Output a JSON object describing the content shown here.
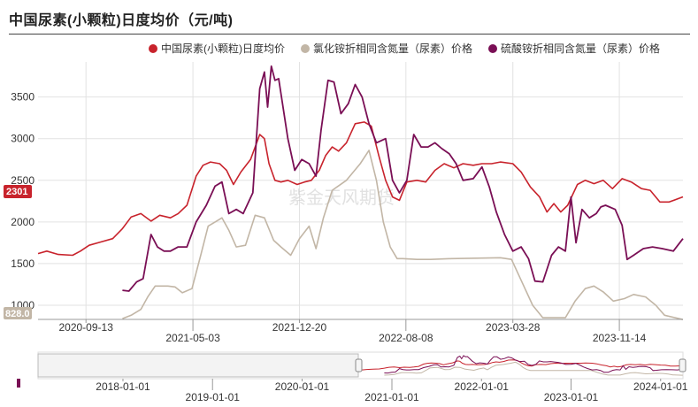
{
  "header": {
    "title": "中国尿素(小颗粒)日度均价（元/吨)"
  },
  "watermark": "紫金天风期货",
  "badges": {
    "current_main": "2301",
    "current_ammonium_chloride": "828.0"
  },
  "navigator": {
    "labels": [
      "2018-01-01",
      "2019-01-01",
      "2020-01-01",
      "2021-01-01",
      "2022-01-01",
      "2023-01-01",
      "2024-01-01"
    ],
    "selected_range": [
      "2020-06-01",
      "2024-03-31"
    ]
  },
  "chart_data": {
    "type": "line",
    "title": "中国尿素(小颗粒)日度均价（元/吨)",
    "xlabel": "",
    "ylabel": "",
    "x_ticks": [
      "2020-09-13",
      "2021-05-03",
      "2021-12-20",
      "2022-08-08",
      "2023-03-28",
      "2023-11-14"
    ],
    "y_ticks": [
      1000,
      1500,
      2000,
      2500,
      3000,
      3500
    ],
    "ylim": [
      830,
      3900
    ],
    "xlim": [
      "2020-06-01",
      "2024-03-31"
    ],
    "grid": true,
    "legend_position": "top-right",
    "colors": {
      "urea": "#c8232c",
      "ammonium_chloride": "#c2b6a6",
      "ammonium_sulfate": "#7a0f55"
    },
    "series": [
      {
        "name": "中国尿素(小颗粒)日度均价",
        "key": "urea",
        "points": [
          [
            "2020-06-01",
            1620
          ],
          [
            "2020-06-20",
            1650
          ],
          [
            "2020-07-15",
            1610
          ],
          [
            "2020-08-15",
            1600
          ],
          [
            "2020-09-01",
            1650
          ],
          [
            "2020-09-20",
            1720
          ],
          [
            "2020-10-15",
            1760
          ],
          [
            "2020-11-10",
            1800
          ],
          [
            "2020-12-01",
            1920
          ],
          [
            "2020-12-20",
            2060
          ],
          [
            "2021-01-10",
            2100
          ],
          [
            "2021-02-01",
            2010
          ],
          [
            "2021-02-20",
            2080
          ],
          [
            "2021-03-15",
            2050
          ],
          [
            "2021-04-01",
            2100
          ],
          [
            "2021-04-20",
            2200
          ],
          [
            "2021-05-10",
            2550
          ],
          [
            "2021-05-25",
            2680
          ],
          [
            "2021-06-10",
            2720
          ],
          [
            "2021-06-30",
            2700
          ],
          [
            "2021-07-15",
            2620
          ],
          [
            "2021-07-30",
            2450
          ],
          [
            "2021-08-15",
            2600
          ],
          [
            "2021-09-05",
            2750
          ],
          [
            "2021-09-25",
            3050
          ],
          [
            "2021-10-05",
            3000
          ],
          [
            "2021-10-15",
            2700
          ],
          [
            "2021-10-28",
            2500
          ],
          [
            "2021-11-10",
            2480
          ],
          [
            "2021-11-25",
            2500
          ],
          [
            "2021-12-15",
            2450
          ],
          [
            "2021-12-31",
            2480
          ],
          [
            "2022-01-15",
            2500
          ],
          [
            "2022-02-01",
            2620
          ],
          [
            "2022-02-15",
            2800
          ],
          [
            "2022-03-01",
            2900
          ],
          [
            "2022-03-15",
            2850
          ],
          [
            "2022-04-01",
            2950
          ],
          [
            "2022-04-20",
            3180
          ],
          [
            "2022-05-10",
            3200
          ],
          [
            "2022-05-25",
            3150
          ],
          [
            "2022-06-10",
            2800
          ],
          [
            "2022-06-25",
            2500
          ],
          [
            "2022-07-10",
            2300
          ],
          [
            "2022-07-25",
            2260
          ],
          [
            "2022-08-10",
            2480
          ],
          [
            "2022-09-01",
            2500
          ],
          [
            "2022-09-20",
            2480
          ],
          [
            "2022-10-10",
            2620
          ],
          [
            "2022-10-30",
            2700
          ],
          [
            "2022-11-20",
            2650
          ],
          [
            "2022-12-10",
            2700
          ],
          [
            "2023-01-01",
            2680
          ],
          [
            "2023-01-20",
            2700
          ],
          [
            "2023-02-10",
            2700
          ],
          [
            "2023-03-01",
            2720
          ],
          [
            "2023-03-28",
            2700
          ],
          [
            "2023-04-15",
            2600
          ],
          [
            "2023-05-05",
            2420
          ],
          [
            "2023-05-25",
            2300
          ],
          [
            "2023-06-10",
            2120
          ],
          [
            "2023-06-25",
            2220
          ],
          [
            "2023-07-10",
            2120
          ],
          [
            "2023-07-25",
            2200
          ],
          [
            "2023-08-15",
            2450
          ],
          [
            "2023-09-01",
            2500
          ],
          [
            "2023-09-20",
            2460
          ],
          [
            "2023-10-10",
            2500
          ],
          [
            "2023-10-30",
            2400
          ],
          [
            "2023-11-20",
            2520
          ],
          [
            "2023-12-10",
            2480
          ],
          [
            "2024-01-01",
            2400
          ],
          [
            "2024-01-20",
            2380
          ],
          [
            "2024-02-10",
            2240
          ],
          [
            "2024-03-01",
            2240
          ],
          [
            "2024-03-31",
            2301
          ]
        ]
      },
      {
        "name": "氯化铵折相同含氮量（尿素）价格",
        "key": "ammonium_chloride",
        "points": [
          [
            "2020-12-01",
            840
          ],
          [
            "2020-12-20",
            880
          ],
          [
            "2021-01-10",
            950
          ],
          [
            "2021-01-25",
            1100
          ],
          [
            "2021-02-10",
            1230
          ],
          [
            "2021-03-10",
            1230
          ],
          [
            "2021-03-25",
            1220
          ],
          [
            "2021-04-10",
            1150
          ],
          [
            "2021-05-01",
            1200
          ],
          [
            "2021-05-20",
            1600
          ],
          [
            "2021-06-05",
            1950
          ],
          [
            "2021-06-20",
            2000
          ],
          [
            "2021-07-05",
            2050
          ],
          [
            "2021-07-20",
            1900
          ],
          [
            "2021-08-05",
            1700
          ],
          [
            "2021-08-25",
            1720
          ],
          [
            "2021-09-15",
            2080
          ],
          [
            "2021-10-05",
            2050
          ],
          [
            "2021-10-25",
            1780
          ],
          [
            "2021-11-10",
            1700
          ],
          [
            "2021-12-01",
            1600
          ],
          [
            "2021-12-20",
            1800
          ],
          [
            "2022-01-10",
            1950
          ],
          [
            "2022-01-25",
            1680
          ],
          [
            "2022-02-10",
            2050
          ],
          [
            "2022-03-01",
            2380
          ],
          [
            "2022-04-01",
            2500
          ],
          [
            "2022-05-01",
            2700
          ],
          [
            "2022-05-20",
            2860
          ],
          [
            "2022-06-05",
            2500
          ],
          [
            "2022-06-20",
            2000
          ],
          [
            "2022-07-05",
            1700
          ],
          [
            "2022-07-20",
            1560
          ],
          [
            "2022-08-01",
            1560
          ],
          [
            "2022-09-01",
            1550
          ],
          [
            "2022-10-01",
            1550
          ],
          [
            "2022-11-15",
            1560
          ],
          [
            "2023-03-01",
            1570
          ],
          [
            "2023-03-25",
            1550
          ],
          [
            "2023-04-15",
            1300
          ],
          [
            "2023-05-10",
            1000
          ],
          [
            "2023-06-01",
            850
          ],
          [
            "2023-06-30",
            850
          ],
          [
            "2023-07-20",
            850
          ],
          [
            "2023-08-10",
            1050
          ],
          [
            "2023-09-01",
            1200
          ],
          [
            "2023-09-20",
            1230
          ],
          [
            "2023-10-10",
            1160
          ],
          [
            "2023-11-01",
            1050
          ],
          [
            "2023-11-25",
            1080
          ],
          [
            "2023-12-15",
            1130
          ],
          [
            "2024-01-10",
            1100
          ],
          [
            "2024-02-01",
            1000
          ],
          [
            "2024-02-20",
            880
          ],
          [
            "2024-03-31",
            828
          ]
        ]
      },
      {
        "name": "硫酸铵折相同含氮量（尿素）价格",
        "key": "ammonium_sulfate",
        "points": [
          [
            "2020-12-01",
            1180
          ],
          [
            "2020-12-15",
            1170
          ],
          [
            "2021-01-01",
            1280
          ],
          [
            "2021-01-15",
            1320
          ],
          [
            "2021-02-01",
            1850
          ],
          [
            "2021-02-15",
            1700
          ],
          [
            "2021-03-01",
            1650
          ],
          [
            "2021-03-15",
            1650
          ],
          [
            "2021-04-01",
            1700
          ],
          [
            "2021-04-20",
            1700
          ],
          [
            "2021-05-10",
            2000
          ],
          [
            "2021-06-01",
            2200
          ],
          [
            "2021-06-20",
            2430
          ],
          [
            "2021-07-05",
            2480
          ],
          [
            "2021-07-20",
            2100
          ],
          [
            "2021-08-05",
            2150
          ],
          [
            "2021-08-20",
            2100
          ],
          [
            "2021-09-10",
            2350
          ],
          [
            "2021-09-25",
            3600
          ],
          [
            "2021-10-05",
            3800
          ],
          [
            "2021-10-12",
            3380
          ],
          [
            "2021-10-20",
            3870
          ],
          [
            "2021-10-28",
            3700
          ],
          [
            "2021-11-05",
            3720
          ],
          [
            "2021-11-25",
            3000
          ],
          [
            "2021-12-10",
            2620
          ],
          [
            "2021-12-25",
            2750
          ],
          [
            "2022-01-10",
            2700
          ],
          [
            "2022-01-25",
            2550
          ],
          [
            "2022-02-05",
            3100
          ],
          [
            "2022-02-20",
            3700
          ],
          [
            "2022-03-05",
            3680
          ],
          [
            "2022-03-20",
            3300
          ],
          [
            "2022-04-05",
            3420
          ],
          [
            "2022-04-20",
            3650
          ],
          [
            "2022-05-05",
            3500
          ],
          [
            "2022-05-20",
            3180
          ],
          [
            "2022-06-05",
            2950
          ],
          [
            "2022-06-25",
            3000
          ],
          [
            "2022-07-10",
            2500
          ],
          [
            "2022-07-25",
            2350
          ],
          [
            "2022-08-10",
            2500
          ],
          [
            "2022-08-25",
            3050
          ],
          [
            "2022-09-10",
            2900
          ],
          [
            "2022-09-25",
            2900
          ],
          [
            "2022-10-10",
            2950
          ],
          [
            "2022-10-25",
            2880
          ],
          [
            "2022-11-10",
            2820
          ],
          [
            "2022-11-25",
            2700
          ],
          [
            "2022-12-10",
            2500
          ],
          [
            "2023-01-01",
            2520
          ],
          [
            "2023-01-20",
            2660
          ],
          [
            "2023-02-05",
            2420
          ],
          [
            "2023-02-20",
            2120
          ],
          [
            "2023-03-10",
            1850
          ],
          [
            "2023-03-28",
            1650
          ],
          [
            "2023-04-15",
            1700
          ],
          [
            "2023-05-01",
            1560
          ],
          [
            "2023-05-15",
            1290
          ],
          [
            "2023-06-01",
            1280
          ],
          [
            "2023-06-20",
            1600
          ],
          [
            "2023-07-05",
            1700
          ],
          [
            "2023-07-20",
            1650
          ],
          [
            "2023-08-01",
            2300
          ],
          [
            "2023-08-12",
            1750
          ],
          [
            "2023-08-25",
            2150
          ],
          [
            "2023-09-10",
            2050
          ],
          [
            "2023-09-25",
            2100
          ],
          [
            "2023-10-05",
            2180
          ],
          [
            "2023-10-15",
            2200
          ],
          [
            "2023-11-05",
            2150
          ],
          [
            "2023-11-20",
            1960
          ],
          [
            "2023-12-01",
            1550
          ],
          [
            "2023-12-15",
            1600
          ],
          [
            "2024-01-05",
            1680
          ],
          [
            "2024-01-25",
            1700
          ],
          [
            "2024-02-15",
            1680
          ],
          [
            "2024-03-10",
            1650
          ],
          [
            "2024-03-31",
            1800
          ]
        ]
      }
    ]
  }
}
